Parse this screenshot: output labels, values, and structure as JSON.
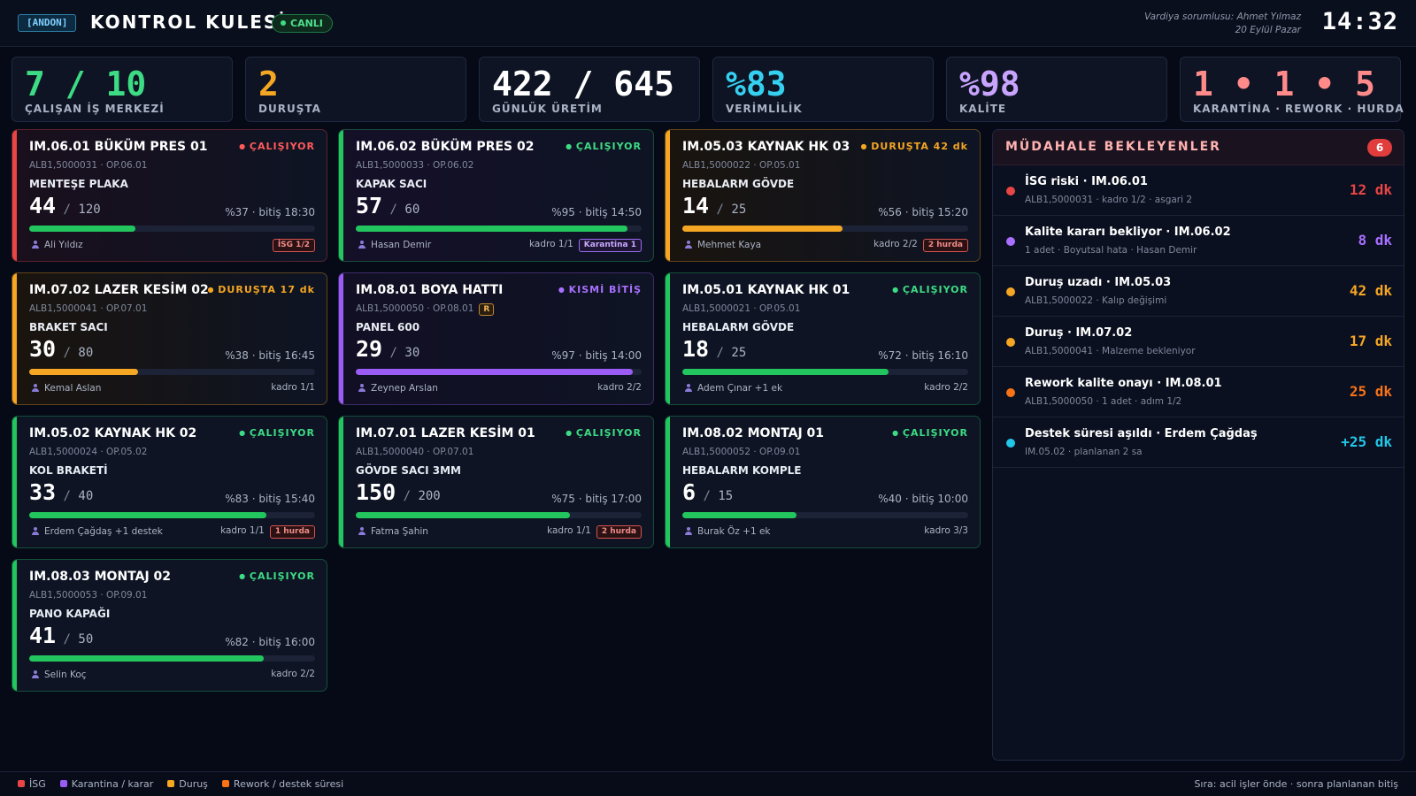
{
  "header": {
    "tag": "[ANDON]",
    "title": "KONTROL KULESİ",
    "live_label": "CANLI",
    "shift_responsible": "Vardiya sorumlusu: Ahmet Yılmaz",
    "date": "20 Eylül Pazar",
    "clock": "14:32"
  },
  "kpis": [
    {
      "value": "7 / 10",
      "label": "ÇALIŞAN İŞ MERKEZİ",
      "color": "#3ddc84"
    },
    {
      "value": "2",
      "label": "DURUŞTA",
      "color": "#f5a623"
    },
    {
      "value": "422 / 645",
      "label": "GÜNLÜK ÜRETİM",
      "color": "#ffffff"
    },
    {
      "value": "%83",
      "label": "VERİMLİLİK",
      "color": "#35d0f0"
    },
    {
      "value": "%98",
      "label": "KALİTE",
      "color": "#c9a4ff"
    },
    {
      "value": "1 • 1 • 5",
      "label": "KARANTİNA · REWORK · HURDA",
      "color": "#ff8a8a"
    }
  ],
  "cards": [
    {
      "title": "IM.06.01 BÜKÜM PRES 01",
      "status": "ÇALIŞIYOR",
      "status_color": "#ff5a5a",
      "accent": "#e84545",
      "tint": "#1a0f1c",
      "code": "ALB1,5000031 · OP.06.01",
      "product": "MENTEŞE PLAKA",
      "done": "44",
      "plan": "120",
      "progress": 0.37,
      "bar_color": "#22c55e",
      "eff": "%37 · bitiş 18:30",
      "operator": "Ali Yıldız",
      "right": "",
      "badge": "İSG 1/2",
      "badge_type": "red",
      "rtag": ""
    },
    {
      "title": "IM.06.02 BÜKÜM PRES 02",
      "status": "ÇALIŞIYOR",
      "status_color": "#3ddc84",
      "accent": "#22c55e",
      "tint": "#150f28",
      "code": "ALB1,5000033 · OP.06.02",
      "product": "KAPAK SACI",
      "done": "57",
      "plan": "60",
      "progress": 0.95,
      "bar_color": "#22c55e",
      "eff": "%95 · bitiş 14:50",
      "operator": "Hasan Demir",
      "right": "kadro 1/1",
      "badge": "Karantina 1",
      "badge_type": "purple",
      "rtag": ""
    },
    {
      "title": "IM.05.03 KAYNAK HK 03",
      "status": "DURUŞTA 42 dk",
      "status_color": "#f5a623",
      "accent": "#f5a623",
      "tint": "#1a140e",
      "code": "ALB1,5000022 · OP.05.01",
      "product": "HEBALARM GÖVDE",
      "done": "14",
      "plan": "25",
      "progress": 0.56,
      "bar_color": "#f5a623",
      "eff": "%56 · bitiş 15:20",
      "operator": "Mehmet Kaya",
      "right": "kadro 2/2",
      "badge": "2 hurda",
      "badge_type": "red",
      "rtag": ""
    },
    {
      "title": "IM.07.02 LAZER KESİM 02",
      "status": "DURUŞTA 17 dk",
      "status_color": "#f5a623",
      "accent": "#f5a623",
      "tint": "#1a140e",
      "code": "ALB1,5000041 · OP.07.01",
      "product": "BRAKET SACI",
      "done": "30",
      "plan": "80",
      "progress": 0.38,
      "bar_color": "#f5a623",
      "eff": "%38 · bitiş 16:45",
      "operator": "Kemal Aslan",
      "right": "kadro 1/1",
      "badge": "",
      "badge_type": "",
      "rtag": ""
    },
    {
      "title": "IM.08.01 BOYA HATTI",
      "status": "KISMİ BİTİŞ",
      "status_color": "#a970ff",
      "accent": "#9b5cf6",
      "tint": "#120f24",
      "code": "ALB1,5000050 · OP.08.01",
      "product": "PANEL 600",
      "done": "29",
      "plan": "30",
      "progress": 0.97,
      "bar_color": "#9b5cf6",
      "eff": "%97 · bitiş 14:00",
      "operator": "Zeynep Arslan",
      "right": "kadro 2/2",
      "badge": "",
      "badge_type": "",
      "rtag": "R"
    },
    {
      "title": "IM.05.01 KAYNAK HK 01",
      "status": "ÇALIŞIYOR",
      "status_color": "#3ddc84",
      "accent": "#22c55e",
      "tint": "#0e1424",
      "code": "ALB1,5000021 · OP.05.01",
      "product": "HEBALARM GÖVDE",
      "done": "18",
      "plan": "25",
      "progress": 0.72,
      "bar_color": "#22c55e",
      "eff": "%72 · bitiş 16:10",
      "operator": "Adem Çınar +1 ek",
      "right": "kadro 2/2",
      "badge": "",
      "badge_type": "",
      "rtag": ""
    },
    {
      "title": "IM.05.02 KAYNAK HK 02",
      "status": "ÇALIŞIYOR",
      "status_color": "#3ddc84",
      "accent": "#22c55e",
      "tint": "#0e1424",
      "code": "ALB1,5000024 · OP.05.02",
      "product": "KOL BRAKETİ",
      "done": "33",
      "plan": "40",
      "progress": 0.83,
      "bar_color": "#22c55e",
      "eff": "%83 · bitiş 15:40",
      "operator": "Erdem Çağdaş +1 destek",
      "right": "kadro 1/1",
      "badge": "1 hurda",
      "badge_type": "red",
      "rtag": ""
    },
    {
      "title": "IM.07.01 LAZER KESİM 01",
      "status": "ÇALIŞIYOR",
      "status_color": "#3ddc84",
      "accent": "#22c55e",
      "tint": "#0e1424",
      "code": "ALB1,5000040 · OP.07.01",
      "product": "GÖVDE SACI 3MM",
      "done": "150",
      "plan": "200",
      "progress": 0.75,
      "bar_color": "#22c55e",
      "eff": "%75 · bitiş 17:00",
      "operator": "Fatma Şahin",
      "right": "kadro 1/1",
      "badge": "2 hurda",
      "badge_type": "red",
      "rtag": ""
    },
    {
      "title": "IM.08.02 MONTAJ 01",
      "status": "ÇALIŞIYOR",
      "status_color": "#3ddc84",
      "accent": "#22c55e",
      "tint": "#0e1424",
      "code": "ALB1,5000052 · OP.09.01",
      "product": "HEBALARM KOMPLE",
      "done": "6",
      "plan": "15",
      "progress": 0.4,
      "bar_color": "#22c55e",
      "eff": "%40 · bitiş 10:00",
      "operator": "Burak Öz +1 ek",
      "right": "kadro 3/3",
      "badge": "",
      "badge_type": "",
      "rtag": ""
    },
    {
      "title": "IM.08.03 MONTAJ 02",
      "status": "ÇALIŞIYOR",
      "status_color": "#3ddc84",
      "accent": "#22c55e",
      "tint": "#0e1424",
      "code": "ALB1,5000053 · OP.09.01",
      "product": "PANO KAPAĞI",
      "done": "41",
      "plan": "50",
      "progress": 0.82,
      "bar_color": "#22c55e",
      "eff": "%82 · bitiş 16:00",
      "operator": "Selin Koç",
      "right": "kadro 2/2",
      "badge": "",
      "badge_type": "",
      "rtag": ""
    }
  ],
  "alerts_panel": {
    "title": "MÜDAHALE BEKLEYENLER",
    "count": "6",
    "items": [
      {
        "title": "İSG riski · IM.06.01",
        "sub": "ALB1,5000031 · kadro 1/2 · asgari 2",
        "time": "12 dk",
        "color": "#e84545"
      },
      {
        "title": "Kalite kararı bekliyor · IM.06.02",
        "sub": "1 adet · Boyutsal hata · Hasan Demir",
        "time": "8 dk",
        "color": "#a970ff"
      },
      {
        "title": "Duruş uzadı · IM.05.03",
        "sub": "ALB1,5000022 · Kalıp değişimi",
        "time": "42 dk",
        "color": "#f5a623"
      },
      {
        "title": "Duruş · IM.07.02",
        "sub": "ALB1,5000041 · Malzeme bekleniyor",
        "time": "17 dk",
        "color": "#f5a623"
      },
      {
        "title": "Rework kalite onayı · IM.08.01",
        "sub": "ALB1,5000050 · 1 adet · adım 1/2",
        "time": "25 dk",
        "color": "#f97316"
      },
      {
        "title": "Destek süresi aşıldı · Erdem Çağdaş",
        "sub": "IM.05.02 · planlanan 2 sa",
        "time": "+25 dk",
        "color": "#22c7e8"
      }
    ]
  },
  "footer": {
    "legend": [
      {
        "label": "İSG",
        "color": "#e84545"
      },
      {
        "label": "Karantina / karar",
        "color": "#9b5cf6"
      },
      {
        "label": "Duruş",
        "color": "#f5a623"
      },
      {
        "label": "Rework / destek süresi",
        "color": "#f97316"
      }
    ],
    "note": "Sıra: acil işler önde · sonra planlanan bitiş"
  }
}
